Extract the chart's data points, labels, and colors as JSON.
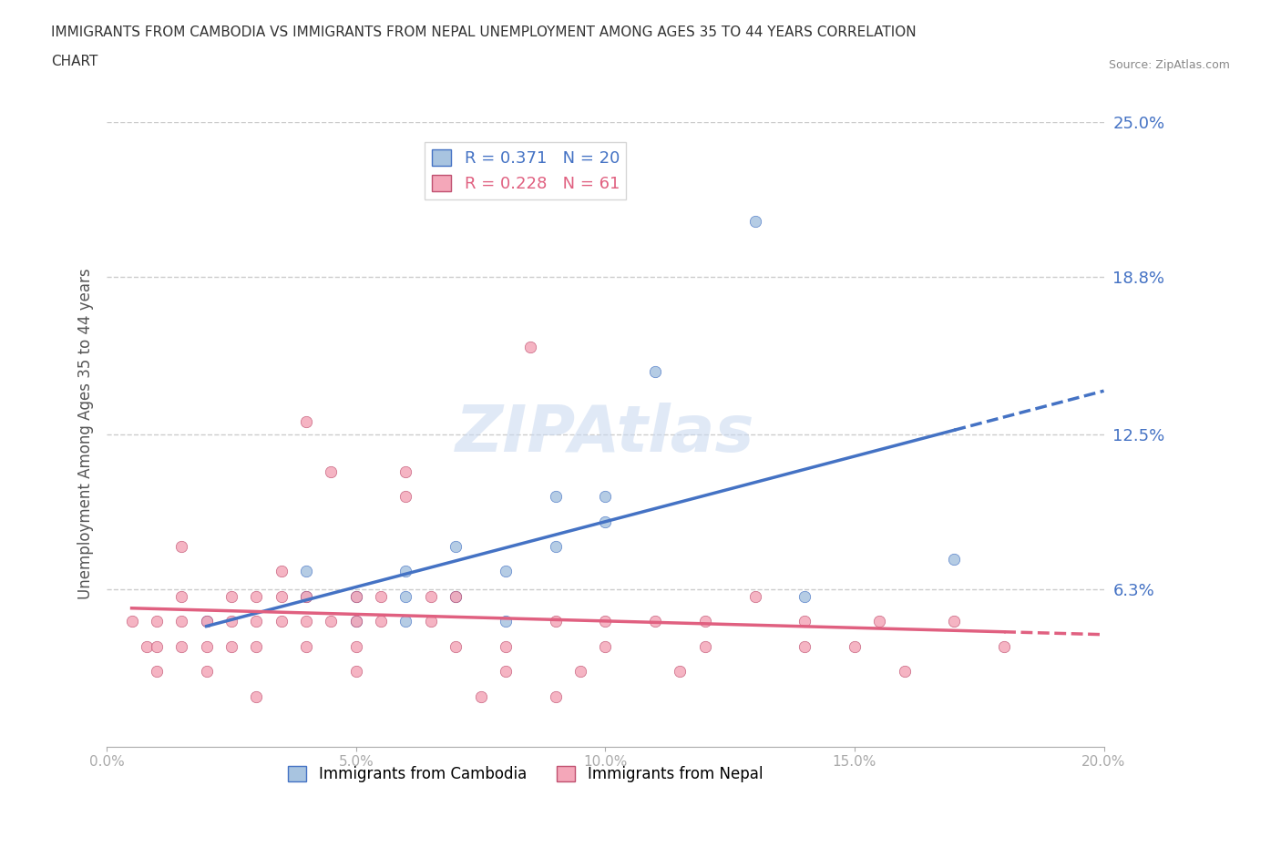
{
  "title_line1": "IMMIGRANTS FROM CAMBODIA VS IMMIGRANTS FROM NEPAL UNEMPLOYMENT AMONG AGES 35 TO 44 YEARS CORRELATION",
  "title_line2": "CHART",
  "source": "Source: ZipAtlas.com",
  "ylabel": "Unemployment Among Ages 35 to 44 years",
  "xlim": [
    0.0,
    0.2
  ],
  "ylim": [
    0.0,
    0.25
  ],
  "yticks": [
    0.0,
    0.063,
    0.125,
    0.188,
    0.25
  ],
  "ytick_labels": [
    "",
    "6.3%",
    "12.5%",
    "18.8%",
    "25.0%"
  ],
  "xticks": [
    0.0,
    0.05,
    0.1,
    0.15,
    0.2
  ],
  "xtick_labels": [
    "0.0%",
    "5.0%",
    "10.0%",
    "15.0%",
    "20.0%"
  ],
  "cambodia_color": "#a8c4e0",
  "nepal_color": "#f4a7b9",
  "cambodia_line_color": "#4472c4",
  "nepal_line_color": "#e06080",
  "nepal_edge_color": "#c05070",
  "R_cambodia": 0.371,
  "N_cambodia": 20,
  "R_nepal": 0.228,
  "N_nepal": 61,
  "watermark": "ZIPAtlas",
  "cambodia_x": [
    0.02,
    0.04,
    0.04,
    0.05,
    0.05,
    0.06,
    0.06,
    0.06,
    0.07,
    0.07,
    0.08,
    0.08,
    0.09,
    0.09,
    0.1,
    0.1,
    0.11,
    0.13,
    0.14,
    0.17
  ],
  "cambodia_y": [
    0.05,
    0.06,
    0.07,
    0.05,
    0.06,
    0.05,
    0.06,
    0.07,
    0.06,
    0.08,
    0.05,
    0.07,
    0.08,
    0.1,
    0.09,
    0.1,
    0.15,
    0.21,
    0.06,
    0.075
  ],
  "nepal_x": [
    0.005,
    0.008,
    0.01,
    0.01,
    0.01,
    0.015,
    0.015,
    0.015,
    0.015,
    0.02,
    0.02,
    0.02,
    0.025,
    0.025,
    0.025,
    0.03,
    0.03,
    0.03,
    0.03,
    0.035,
    0.035,
    0.035,
    0.04,
    0.04,
    0.04,
    0.04,
    0.045,
    0.045,
    0.05,
    0.05,
    0.05,
    0.05,
    0.055,
    0.055,
    0.06,
    0.06,
    0.065,
    0.065,
    0.07,
    0.07,
    0.075,
    0.08,
    0.08,
    0.085,
    0.09,
    0.09,
    0.095,
    0.1,
    0.1,
    0.11,
    0.115,
    0.12,
    0.12,
    0.13,
    0.14,
    0.14,
    0.15,
    0.155,
    0.16,
    0.17,
    0.18
  ],
  "nepal_y": [
    0.05,
    0.04,
    0.03,
    0.04,
    0.05,
    0.04,
    0.05,
    0.06,
    0.08,
    0.03,
    0.04,
    0.05,
    0.04,
    0.05,
    0.06,
    0.02,
    0.04,
    0.05,
    0.06,
    0.05,
    0.06,
    0.07,
    0.04,
    0.05,
    0.06,
    0.13,
    0.05,
    0.11,
    0.05,
    0.06,
    0.04,
    0.03,
    0.05,
    0.06,
    0.1,
    0.11,
    0.05,
    0.06,
    0.04,
    0.06,
    0.02,
    0.03,
    0.04,
    0.16,
    0.05,
    0.02,
    0.03,
    0.05,
    0.04,
    0.05,
    0.03,
    0.04,
    0.05,
    0.06,
    0.04,
    0.05,
    0.04,
    0.05,
    0.03,
    0.05,
    0.04
  ]
}
